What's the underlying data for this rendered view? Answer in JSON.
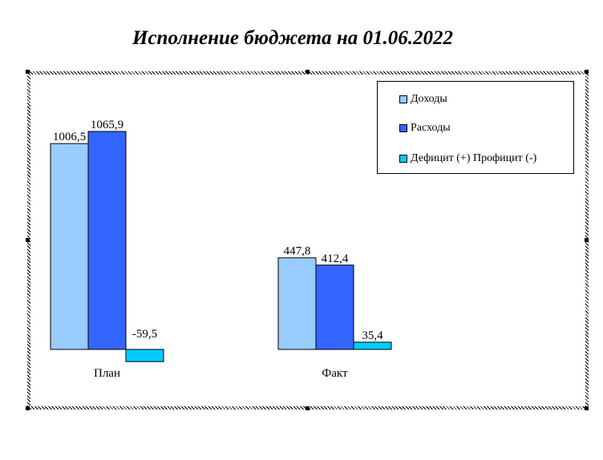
{
  "chart_data": {
    "type": "bar",
    "title": "Исполнение бюджета на 01.06.2022",
    "categories": [
      "План",
      "Факт"
    ],
    "series": [
      {
        "name": "Доходы",
        "values": [
          1006.5,
          447.8
        ],
        "labels": [
          "1006,5",
          "447,8"
        ],
        "color": "#99ccff"
      },
      {
        "name": "Расходы",
        "values": [
          1065.9,
          412.4
        ],
        "labels": [
          "1065,9",
          "412,4"
        ],
        "color": "#3366ff"
      },
      {
        "name": "Дефицит (+) Профицит (-)",
        "values": [
          -59.5,
          35.4
        ],
        "labels": [
          "-59,5",
          "35,4"
        ],
        "color": "#00ccff"
      }
    ],
    "xlabel": "",
    "ylabel": "",
    "ylim": [
      -100,
      1200
    ],
    "grid": false,
    "legend_position": "top-right"
  }
}
